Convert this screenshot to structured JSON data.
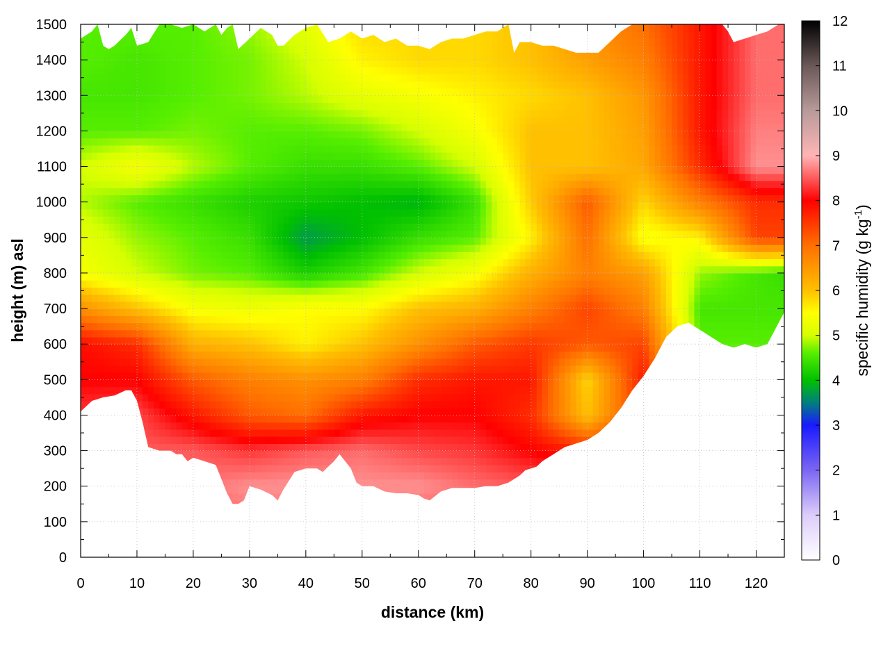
{
  "chart_data": {
    "type": "heatmap",
    "xlabel": "distance (km)",
    "ylabel": "height (m) asl",
    "colorbar_label": "specific humidity (g kg",
    "colorbar_unit_exponent": "-1",
    "colorbar_label_close": ")",
    "xlim": [
      0,
      125
    ],
    "ylim": [
      0,
      1500
    ],
    "zlim": [
      0,
      12
    ],
    "x_ticks": [
      "0",
      "10",
      "20",
      "30",
      "40",
      "50",
      "60",
      "70",
      "80",
      "90",
      "100",
      "110",
      "120"
    ],
    "y_ticks": [
      "0",
      "100",
      "200",
      "300",
      "400",
      "500",
      "600",
      "700",
      "800",
      "900",
      "1000",
      "1100",
      "1200",
      "1300",
      "1400",
      "1500"
    ],
    "z_ticks": [
      "0",
      "1",
      "2",
      "3",
      "4",
      "5",
      "6",
      "7",
      "8",
      "9",
      "10",
      "11",
      "12"
    ],
    "grid": true,
    "colormap": [
      {
        "v": 0,
        "color": "#ffffff"
      },
      {
        "v": 1,
        "color": "#dccdfa"
      },
      {
        "v": 2,
        "color": "#7b66f3"
      },
      {
        "v": 3,
        "color": "#1a1aff"
      },
      {
        "v": 3.5,
        "color": "#007f7f"
      },
      {
        "v": 4,
        "color": "#00c000"
      },
      {
        "v": 4.6,
        "color": "#55ee00"
      },
      {
        "v": 5,
        "color": "#d6ff00"
      },
      {
        "v": 5.5,
        "color": "#ffff00"
      },
      {
        "v": 6,
        "color": "#ffc000"
      },
      {
        "v": 7,
        "color": "#ff7000"
      },
      {
        "v": 8,
        "color": "#ff0000"
      },
      {
        "v": 9,
        "color": "#ffb5b5"
      },
      {
        "v": 10,
        "color": "#b89a9a"
      },
      {
        "v": 11,
        "color": "#6b5858"
      },
      {
        "v": 12,
        "color": "#000000"
      }
    ],
    "terrain": {
      "x": [
        0,
        2,
        4,
        6,
        8,
        9,
        10,
        11,
        12,
        14,
        16,
        17,
        18,
        19,
        20,
        22,
        24,
        25,
        26,
        27,
        28,
        29,
        30,
        32,
        34,
        35,
        36,
        38,
        40,
        42,
        43,
        45,
        46,
        48,
        49,
        50,
        52,
        54,
        56,
        58,
        60,
        61,
        62,
        64,
        66,
        68,
        70,
        72,
        74,
        76,
        77,
        78,
        79,
        80,
        81,
        82,
        84,
        86,
        88,
        90,
        92,
        94,
        96,
        98,
        100,
        102,
        104,
        106,
        108,
        110,
        112,
        114,
        116,
        118,
        120,
        122,
        124,
        125
      ],
      "z": [
        410,
        440,
        450,
        455,
        470,
        470,
        440,
        380,
        310,
        300,
        300,
        290,
        290,
        270,
        280,
        270,
        260,
        220,
        180,
        150,
        150,
        160,
        200,
        190,
        175,
        160,
        190,
        240,
        250,
        250,
        240,
        270,
        290,
        250,
        210,
        200,
        200,
        185,
        180,
        180,
        175,
        165,
        160,
        185,
        195,
        195,
        195,
        200,
        200,
        210,
        220,
        230,
        245,
        250,
        255,
        270,
        290,
        310,
        320,
        330,
        350,
        380,
        420,
        470,
        510,
        560,
        620,
        650,
        660,
        640,
        620,
        600,
        590,
        600,
        590,
        600,
        660,
        690
      ]
    },
    "top": {
      "x": [
        0,
        2,
        3,
        4,
        5,
        6,
        8,
        9,
        10,
        12,
        14,
        16,
        18,
        20,
        22,
        24,
        25,
        26,
        27,
        28,
        30,
        32,
        34,
        35,
        36,
        38,
        40,
        42,
        44,
        46,
        48,
        50,
        52,
        54,
        56,
        58,
        60,
        62,
        64,
        66,
        68,
        70,
        72,
        74,
        76,
        77,
        78,
        80,
        82,
        84,
        86,
        88,
        90,
        92,
        94,
        96,
        98,
        100,
        102,
        104,
        106,
        108,
        110,
        112,
        114,
        115,
        116,
        118,
        120,
        122,
        124,
        125
      ],
      "z": [
        1460,
        1480,
        1500,
        1440,
        1430,
        1440,
        1470,
        1490,
        1440,
        1450,
        1500,
        1500,
        1490,
        1500,
        1480,
        1500,
        1470,
        1490,
        1500,
        1430,
        1460,
        1490,
        1470,
        1440,
        1440,
        1470,
        1490,
        1500,
        1450,
        1460,
        1480,
        1460,
        1470,
        1450,
        1460,
        1440,
        1440,
        1430,
        1450,
        1460,
        1460,
        1470,
        1480,
        1480,
        1500,
        1420,
        1450,
        1450,
        1440,
        1440,
        1430,
        1420,
        1420,
        1420,
        1450,
        1480,
        1500,
        1500,
        1500,
        1500,
        1500,
        1500,
        1500,
        1500,
        1500,
        1480,
        1450,
        1460,
        1470,
        1480,
        1500,
        1500
      ]
    },
    "field": {
      "x": [
        0,
        10,
        20,
        30,
        40,
        50,
        60,
        70,
        80,
        90,
        100,
        110,
        120,
        125
      ],
      "z": [
        0,
        100,
        200,
        300,
        400,
        500,
        600,
        700,
        800,
        900,
        1000,
        1100,
        1200,
        1300,
        1400,
        1500
      ],
      "q": [
        [
          8.5,
          8.5,
          8.5,
          8.5,
          8.5,
          8.5,
          8.5,
          8.5,
          8.5,
          8.5,
          8.5,
          8.5,
          8.5,
          8.5
        ],
        [
          8.5,
          8.5,
          8.5,
          8.6,
          8.6,
          8.5,
          8.5,
          8.5,
          8.5,
          8.5,
          8.5,
          8.5,
          8.5,
          8.5
        ],
        [
          8.5,
          8.5,
          8.6,
          8.8,
          8.8,
          8.8,
          8.8,
          8.6,
          8.5,
          8.4,
          8.2,
          8.2,
          8.2,
          8.2
        ],
        [
          8.4,
          8.5,
          8.5,
          8.3,
          8.5,
          8.6,
          8.4,
          8.3,
          8.0,
          7.7,
          7.6,
          7.6,
          7.6,
          7.6
        ],
        [
          8.3,
          8.4,
          7.8,
          7.2,
          7.0,
          7.8,
          8.0,
          8.0,
          7.6,
          6.0,
          7.6,
          7.4,
          7.4,
          7.4
        ],
        [
          8.0,
          8.0,
          7.2,
          6.8,
          6.6,
          6.8,
          7.6,
          7.8,
          7.8,
          5.8,
          7.8,
          4.8,
          4.8,
          4.8
        ],
        [
          7.9,
          7.6,
          6.2,
          6.0,
          5.6,
          6.0,
          6.6,
          7.2,
          7.5,
          7.2,
          7.4,
          4.6,
          4.6,
          4.6
        ],
        [
          6.6,
          6.0,
          5.4,
          5.3,
          5.5,
          5.5,
          6.0,
          6.2,
          6.8,
          7.4,
          6.8,
          4.5,
          4.5,
          4.5
        ],
        [
          5.4,
          5.0,
          4.7,
          4.6,
          4.2,
          4.5,
          5.0,
          5.4,
          6.2,
          6.8,
          6.4,
          4.8,
          4.5,
          4.4
        ],
        [
          5.2,
          4.8,
          4.6,
          4.4,
          3.7,
          4.0,
          4.4,
          4.6,
          5.6,
          7.0,
          5.4,
          5.6,
          7.4,
          7.4
        ],
        [
          4.9,
          4.6,
          4.4,
          4.2,
          4.1,
          4.0,
          3.9,
          4.4,
          5.9,
          7.2,
          5.8,
          6.8,
          7.6,
          7.6
        ],
        [
          5.0,
          5.4,
          4.9,
          4.6,
          4.4,
          4.4,
          4.6,
          5.0,
          6.0,
          6.0,
          6.3,
          7.6,
          8.8,
          8.8
        ],
        [
          4.6,
          4.6,
          4.7,
          4.6,
          4.6,
          4.7,
          5.0,
          5.4,
          6.0,
          6.0,
          6.4,
          7.8,
          8.7,
          8.7
        ],
        [
          4.5,
          4.5,
          4.6,
          4.7,
          4.9,
          5.2,
          5.4,
          5.6,
          5.8,
          6.0,
          6.5,
          7.8,
          8.6,
          8.6
        ],
        [
          4.6,
          4.5,
          4.6,
          4.7,
          5.0,
          5.6,
          5.8,
          5.8,
          6.0,
          6.4,
          6.8,
          7.8,
          8.6,
          8.6
        ],
        [
          4.6,
          4.6,
          4.6,
          4.8,
          5.2,
          5.8,
          5.8,
          5.8,
          6.0,
          6.6,
          7.0,
          7.8,
          8.6,
          8.6
        ]
      ]
    }
  }
}
